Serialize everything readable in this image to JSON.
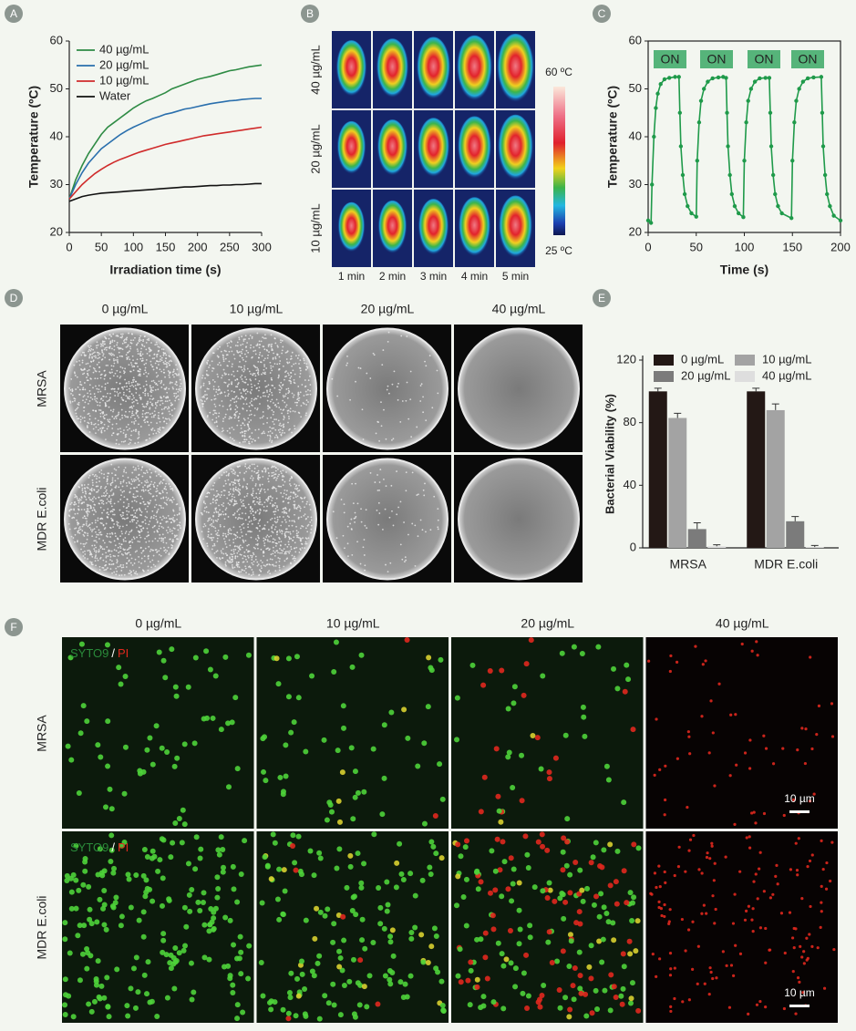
{
  "panel_labels": [
    "A",
    "B",
    "C",
    "D",
    "E",
    "F"
  ],
  "chart_data": [
    {
      "type": "line",
      "xlabel": "Irradiation time (s)",
      "ylabel": "Temperature (ºC)",
      "x": [
        0,
        10,
        20,
        30,
        40,
        50,
        60,
        70,
        80,
        90,
        100,
        110,
        120,
        130,
        140,
        150,
        160,
        170,
        180,
        190,
        200,
        210,
        220,
        230,
        240,
        250,
        260,
        270,
        280,
        290,
        300
      ],
      "xlim": [
        0,
        300
      ],
      "ylim": [
        20,
        60
      ],
      "xticks": [
        0,
        50,
        100,
        150,
        200,
        250,
        300
      ],
      "yticks": [
        20,
        30,
        40,
        50,
        60
      ],
      "legend": "upper left",
      "box": false,
      "markers": false,
      "series": [
        {
          "name": "40 µg/mL",
          "color": "#2e8b44",
          "values": [
            27,
            31,
            34,
            36.5,
            38.5,
            40.5,
            42,
            43,
            44,
            45,
            46,
            46.8,
            47.5,
            48,
            48.6,
            49.2,
            50,
            50.5,
            51,
            51.5,
            52,
            52.3,
            52.6,
            53,
            53.4,
            53.8,
            54,
            54.3,
            54.6,
            54.8,
            55
          ]
        },
        {
          "name": "20 µg/mL",
          "color": "#2a6fad",
          "values": [
            27,
            30,
            32.5,
            34.5,
            36,
            37.5,
            38.5,
            39.5,
            40.5,
            41.3,
            42,
            42.6,
            43.2,
            43.8,
            44.2,
            44.7,
            45,
            45.4,
            45.8,
            46,
            46.3,
            46.6,
            46.9,
            47.1,
            47.3,
            47.5,
            47.6,
            47.8,
            47.9,
            48,
            48
          ]
        },
        {
          "name": "10 µg/mL",
          "color": "#d02b2b",
          "values": [
            27,
            28.5,
            30,
            31.2,
            32.3,
            33.2,
            34,
            34.7,
            35.3,
            35.8,
            36.3,
            36.8,
            37.2,
            37.6,
            38,
            38.4,
            38.7,
            39,
            39.3,
            39.6,
            39.9,
            40.2,
            40.4,
            40.6,
            40.8,
            41,
            41.2,
            41.4,
            41.6,
            41.8,
            42
          ]
        },
        {
          "name": "Water",
          "color": "#111111",
          "values": [
            26.5,
            27,
            27.5,
            27.8,
            28,
            28.2,
            28.3,
            28.4,
            28.5,
            28.6,
            28.7,
            28.8,
            28.9,
            29,
            29.1,
            29.2,
            29.3,
            29.4,
            29.5,
            29.5,
            29.6,
            29.7,
            29.8,
            29.8,
            29.9,
            29.9,
            30,
            30,
            30.1,
            30.2,
            30.2
          ]
        }
      ]
    },
    {
      "type": "line",
      "xlabel": "Time (s)",
      "ylabel": "Temperature (ºC)",
      "x": [
        0,
        3,
        4,
        6,
        8,
        10,
        13,
        17,
        22,
        28,
        32,
        33,
        34,
        36,
        38,
        41,
        45,
        50,
        51,
        53,
        55,
        58,
        62,
        67,
        73,
        78,
        81,
        82,
        83,
        85,
        87,
        90,
        94,
        99,
        100,
        102,
        104,
        107,
        111,
        116,
        122,
        126,
        127,
        128,
        130,
        132,
        135,
        139,
        149,
        150,
        152,
        154,
        157,
        161,
        166,
        172,
        180,
        181,
        182,
        184,
        186,
        189,
        193,
        200
      ],
      "xlim": [
        0,
        200
      ],
      "ylim": [
        20,
        60
      ],
      "xticks": [
        0,
        50,
        100,
        150,
        200
      ],
      "yticks": [
        20,
        30,
        40,
        50,
        60
      ],
      "box": true,
      "markers": true,
      "annotations": [
        "ON",
        "ON",
        "ON",
        "ON"
      ],
      "series": [
        {
          "color": "#1f9a4a",
          "values": [
            22.5,
            22,
            30,
            40,
            46,
            49,
            51,
            52,
            52.3,
            52.5,
            52.5,
            45,
            38,
            32,
            28,
            25.5,
            24,
            23.3,
            35,
            43,
            47.5,
            50,
            51.5,
            52.2,
            52.4,
            52.5,
            52.3,
            45,
            38,
            32,
            28,
            25.5,
            24,
            23.2,
            35,
            43,
            47.5,
            50,
            51.5,
            52.2,
            52.3,
            52.3,
            45,
            38,
            32,
            28,
            25.5,
            24,
            23,
            35,
            43,
            47.5,
            50,
            51.5,
            52.2,
            52.4,
            52.5,
            45,
            38,
            32,
            28,
            25.5,
            23.5,
            22.5
          ]
        }
      ]
    },
    {
      "type": "bar",
      "ylabel": "Bacterial Viability (%)",
      "categories": [
        "MRSA",
        "MDR E.coli"
      ],
      "ylim": [
        0,
        120
      ],
      "yticks": [
        0,
        40,
        80,
        120
      ],
      "legend": "top",
      "series": [
        {
          "name": "0 µg/mL",
          "color": "#231815",
          "values": [
            100,
            100
          ],
          "errors": [
            2,
            2
          ]
        },
        {
          "name": "10 µg/mL",
          "color": "#a3a3a3",
          "values": [
            83,
            88
          ],
          "errors": [
            3,
            4
          ]
        },
        {
          "name": "20 µg/mL",
          "color": "#7b7b7b",
          "values": [
            12,
            17
          ],
          "errors": [
            4,
            3
          ]
        },
        {
          "name": "40 µg/mL",
          "color": "#dedede",
          "values": [
            1,
            0.5
          ],
          "errors": [
            1,
            1
          ]
        }
      ]
    }
  ],
  "thermal": {
    "row_labels": [
      "40 µg/mL",
      "20 µg/mL",
      "10 µg/mL"
    ],
    "col_labels": [
      "1 min",
      "2 min",
      "3 min",
      "4 min",
      "5 min"
    ],
    "scale_max": "60 ºC",
    "scale_min": "25 ºC"
  },
  "plates": {
    "col_labels": [
      "0 µg/mL",
      "10 µg/mL",
      "20 µg/mL",
      "40 µg/mL"
    ],
    "row_labels": [
      "MRSA",
      "MDR E.coli"
    ]
  },
  "fluorescence": {
    "col_labels": [
      "0 µg/mL",
      "10 µg/mL",
      "20 µg/mL",
      "40 µg/mL"
    ],
    "row_labels": [
      "MRSA",
      "MDR E.coli"
    ],
    "stain": [
      "SYTO9",
      "/",
      "PI"
    ],
    "scale_bar": "10 µm"
  }
}
